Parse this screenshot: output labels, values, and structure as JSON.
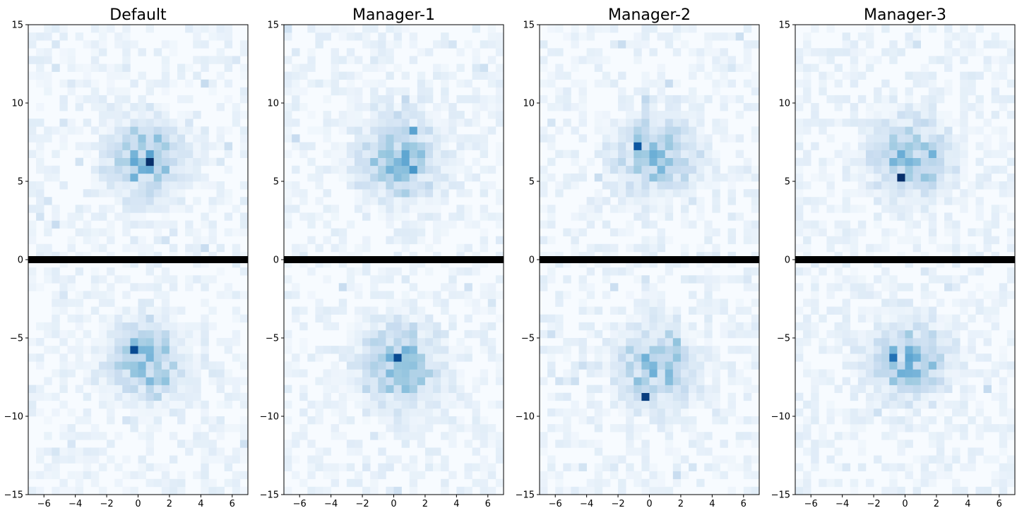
{
  "chart_data": [
    {
      "type": "heatmap",
      "title": "Default",
      "xlim": [
        -7,
        7
      ],
      "ylim": [
        -15,
        15
      ],
      "xticks": [
        -6,
        -4,
        -2,
        0,
        2,
        4,
        6
      ],
      "yticks": [
        -15,
        -10,
        -5,
        0,
        5,
        10,
        15
      ],
      "x_tick_labels": [
        "−6",
        "−4",
        "−2",
        "0",
        "2",
        "4",
        "6"
      ],
      "y_tick_labels": [
        "−15",
        "−10",
        "−5",
        "0",
        "5",
        "10",
        "15"
      ],
      "colormap": "Blues",
      "separator_at_y": 0,
      "bin_width": 0.5,
      "clusters": [
        {
          "x_center": 0.5,
          "y_center": 6.5,
          "spread": 1.6,
          "peak": 1.0,
          "peak_x": 0.75,
          "peak_y": 6.25
        },
        {
          "x_center": 0.4,
          "y_center": -6.6,
          "spread": 1.6,
          "peak": 0.9,
          "peak_x": -0.25,
          "peak_y": -5.75
        }
      ],
      "grid": false
    },
    {
      "type": "heatmap",
      "title": "Manager-1",
      "xlim": [
        -7,
        7
      ],
      "ylim": [
        -15,
        15
      ],
      "xticks": [
        -6,
        -4,
        -2,
        0,
        2,
        4,
        6
      ],
      "yticks": [
        -15,
        -10,
        -5,
        0,
        5,
        10,
        15
      ],
      "x_tick_labels": [
        "−6",
        "−4",
        "−2",
        "0",
        "2",
        "4",
        "6"
      ],
      "y_tick_labels": [
        "−15",
        "−10",
        "−5",
        "0",
        "5",
        "10",
        "15"
      ],
      "colormap": "Blues",
      "separator_at_y": 0,
      "bin_width": 0.5,
      "clusters": [
        {
          "x_center": 0.3,
          "y_center": 6.5,
          "spread": 1.7,
          "peak": 0.55,
          "peak_x": 1.25,
          "peak_y": 8.25
        },
        {
          "x_center": 0.3,
          "y_center": -6.8,
          "spread": 1.7,
          "peak": 0.9,
          "peak_x": 0.25,
          "peak_y": -6.25
        }
      ],
      "grid": false
    },
    {
      "type": "heatmap",
      "title": "Manager-2",
      "xlim": [
        -7,
        7
      ],
      "ylim": [
        -15,
        15
      ],
      "xticks": [
        -6,
        -4,
        -2,
        0,
        2,
        4,
        6
      ],
      "yticks": [
        -15,
        -10,
        -5,
        0,
        5,
        10,
        15
      ],
      "x_tick_labels": [
        "−6",
        "−4",
        "−2",
        "0",
        "2",
        "4",
        "6"
      ],
      "y_tick_labels": [
        "−15",
        "−10",
        "−5",
        "0",
        "5",
        "10",
        "15"
      ],
      "colormap": "Blues",
      "separator_at_y": 0,
      "bin_width": 0.5,
      "clusters": [
        {
          "x_center": 0.4,
          "y_center": 6.6,
          "spread": 1.6,
          "peak": 0.85,
          "peak_x": -0.75,
          "peak_y": 7.25
        },
        {
          "x_center": 0.4,
          "y_center": -6.8,
          "spread": 1.6,
          "peak": 0.95,
          "peak_x": -0.25,
          "peak_y": -8.75
        }
      ],
      "grid": false
    },
    {
      "type": "heatmap",
      "title": "Manager-3",
      "xlim": [
        -7,
        7
      ],
      "ylim": [
        -15,
        15
      ],
      "xticks": [
        -6,
        -4,
        -2,
        0,
        2,
        4,
        6
      ],
      "yticks": [
        -15,
        -10,
        -5,
        0,
        5,
        10,
        15
      ],
      "x_tick_labels": [
        "−6",
        "−4",
        "−2",
        "0",
        "2",
        "4",
        "6"
      ],
      "y_tick_labels": [
        "−15",
        "−10",
        "−5",
        "0",
        "5",
        "10",
        "15"
      ],
      "colormap": "Blues",
      "separator_at_y": 0,
      "bin_width": 0.5,
      "clusters": [
        {
          "x_center": 0.4,
          "y_center": 6.7,
          "spread": 1.6,
          "peak": 1.0,
          "peak_x": -0.25,
          "peak_y": 5.25
        },
        {
          "x_center": 0.3,
          "y_center": -6.4,
          "spread": 1.6,
          "peak": 0.75,
          "peak_x": -0.75,
          "peak_y": -6.25
        }
      ],
      "grid": false
    }
  ]
}
